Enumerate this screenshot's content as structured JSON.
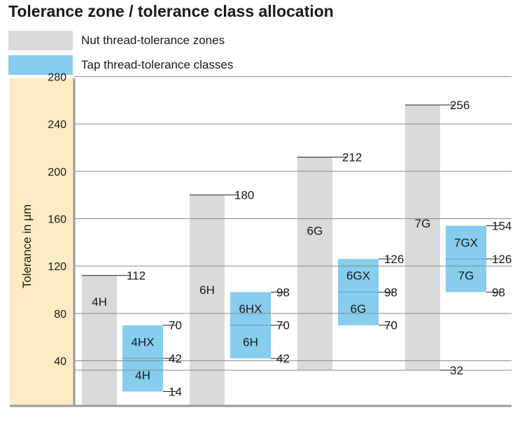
{
  "chart_data": {
    "type": "bar",
    "title": "Tolerance zone / tolerance class allocation",
    "ylabel": "Tolerance in µm",
    "xlabel": "",
    "ylim": [
      14,
      284
    ],
    "yticks": [
      40,
      80,
      120,
      160,
      200,
      240,
      280
    ],
    "grid": true,
    "legend_placement": "top-left",
    "legend": [
      {
        "label": "Nut thread-tolerance zones",
        "color": "#d9dadc"
      },
      {
        "label": "Tap thread-tolerance classes",
        "color": "#86cdee"
      }
    ],
    "colors": {
      "nut": "#d9dadc",
      "tap": "#86cdee",
      "axis_band": "#fdebc4",
      "grid": "#8a8a8a",
      "axis": "#9a9a9a"
    },
    "nut_zones": [
      {
        "name": "4H",
        "top": 112
      },
      {
        "name": "6H",
        "top": 180
      },
      {
        "name": "6G",
        "top": 212
      },
      {
        "name": "7G",
        "top": 256,
        "bottom_label": "32"
      }
    ],
    "nut_common_bottom": 32,
    "top_labels": [
      "112",
      "180",
      "212",
      "256"
    ],
    "tap_classes": [
      {
        "upper_name": "4HX",
        "lower_name": "4H",
        "top": 70,
        "mid": 42,
        "bottom": 14,
        "labels": [
          "70",
          "42",
          "14"
        ]
      },
      {
        "upper_name": "6HX",
        "lower_name": "6H",
        "top": 98,
        "mid": 70,
        "bottom": 42,
        "labels": [
          "98",
          "70",
          "42"
        ]
      },
      {
        "upper_name": "6GX",
        "lower_name": "6G",
        "top": 126,
        "mid": 98,
        "bottom": 70,
        "labels": [
          "126",
          "98",
          "70"
        ]
      },
      {
        "upper_name": "7GX",
        "lower_name": "7G",
        "top": 154,
        "mid": 126,
        "bottom": 98,
        "labels": [
          "154",
          "126",
          "98"
        ]
      }
    ]
  }
}
